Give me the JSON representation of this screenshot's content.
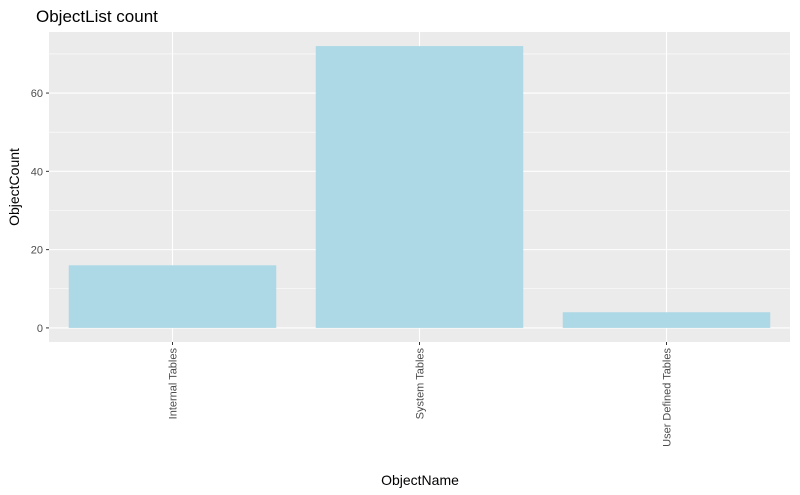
{
  "chart_data": {
    "type": "bar",
    "title": "ObjectList count",
    "xlabel": "ObjectName",
    "ylabel": "ObjectCount",
    "categories": [
      "Internal Tables",
      "System Tables",
      "User Defined Tables"
    ],
    "values": [
      16,
      72,
      4
    ],
    "ylim": [
      -3.6,
      75.6
    ],
    "yticks": [
      0,
      20,
      40,
      60
    ],
    "ytick_labels": [
      "0",
      "20",
      "40",
      "60"
    ],
    "grid": true,
    "legend": "none",
    "colors": {
      "bar": "#add8e6",
      "panel_background": "#ebebeb",
      "grid_major": "#ffffff",
      "tick_text": "#4d4d4d"
    }
  }
}
